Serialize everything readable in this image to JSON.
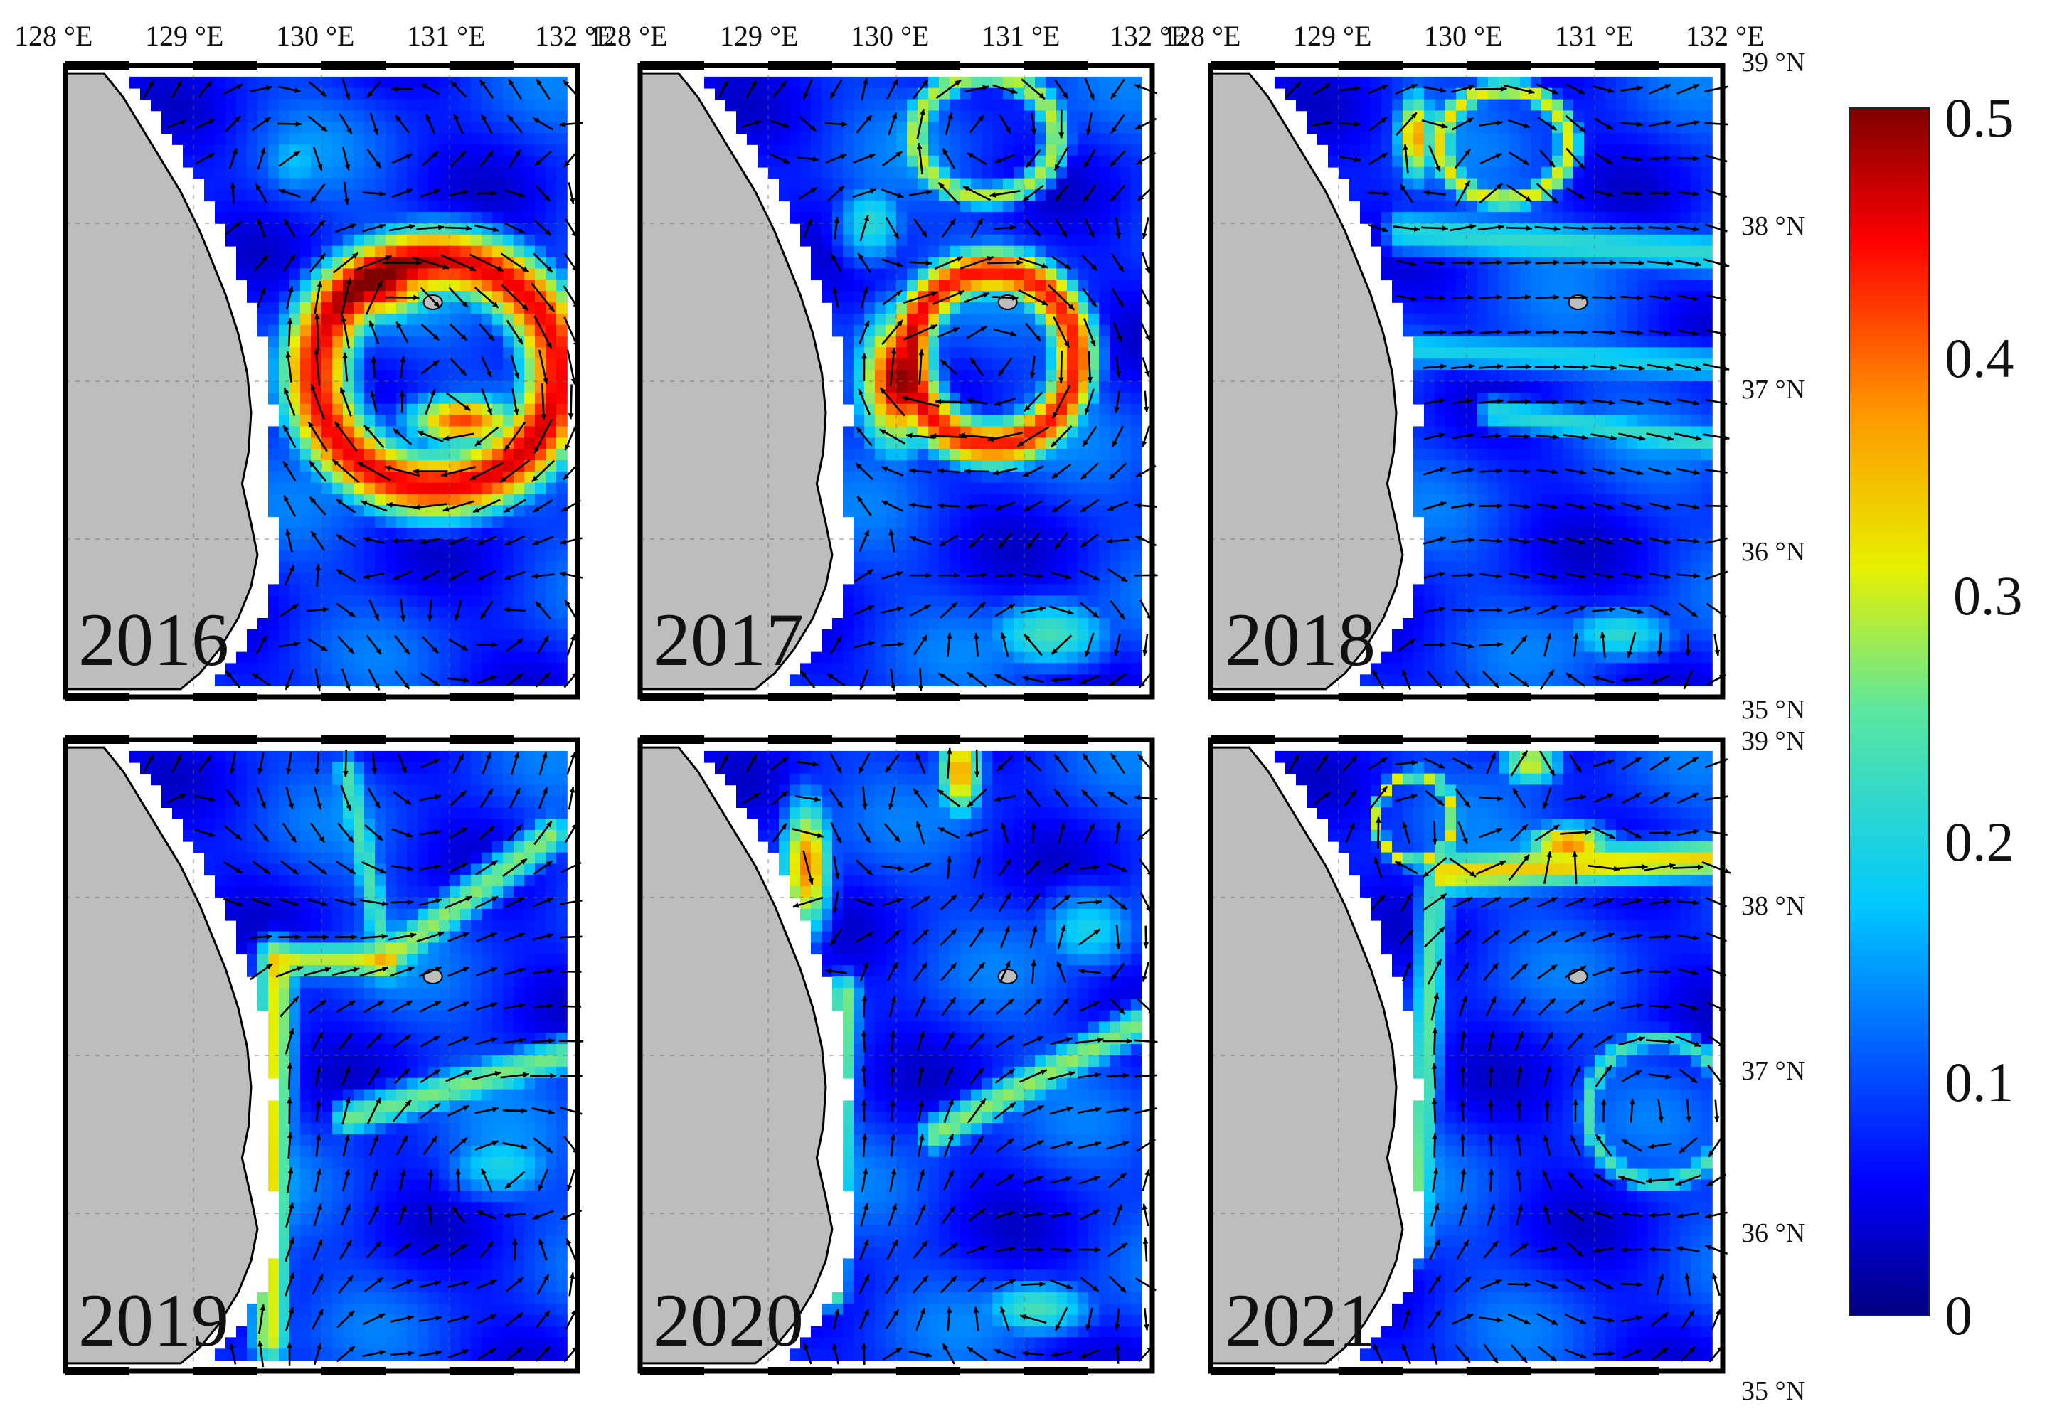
{
  "figure": {
    "longitude_labels": [
      "128 °E",
      "129 °E",
      "130 °E",
      "131 °E",
      "132 °E"
    ],
    "latitude_labels": [
      "39 °N",
      "38 °N",
      "37 °N",
      "36 °N",
      "35 °N"
    ],
    "longitude_range": [
      128,
      132
    ],
    "latitude_range": [
      35,
      39
    ],
    "panels": [
      {
        "year": "2016",
        "features": [
          {
            "kind": "ring",
            "lon": 130.9,
            "lat": 37.05,
            "r_lon": 0.95,
            "r_lat": 0.72,
            "width": 0.32,
            "speed": 0.44
          },
          {
            "kind": "blob",
            "lon": 130.45,
            "lat": 37.6,
            "r_lon": 0.45,
            "r_lat": 0.22,
            "speed": 0.43
          },
          {
            "kind": "blob",
            "lon": 131.1,
            "lat": 36.75,
            "r_lon": 0.45,
            "r_lat": 0.17,
            "speed": 0.4
          },
          {
            "kind": "blob",
            "lon": 129.8,
            "lat": 38.4,
            "r_lon": 0.35,
            "r_lat": 0.3,
            "speed": 0.15
          }
        ]
      },
      {
        "year": "2017",
        "features": [
          {
            "kind": "ring",
            "lon": 130.75,
            "lat": 37.15,
            "r_lon": 0.65,
            "r_lat": 0.55,
            "width": 0.3,
            "speed": 0.42
          },
          {
            "kind": "blob",
            "lon": 130.0,
            "lat": 37.0,
            "r_lon": 0.3,
            "r_lat": 0.45,
            "speed": 0.45
          },
          {
            "kind": "ring",
            "lon": 130.7,
            "lat": 38.55,
            "r_lon": 0.55,
            "r_lat": 0.38,
            "width": 0.22,
            "speed": 0.28
          },
          {
            "kind": "blob",
            "lon": 131.2,
            "lat": 35.4,
            "r_lon": 0.55,
            "r_lat": 0.25,
            "speed": 0.22
          },
          {
            "kind": "blob",
            "lon": 129.8,
            "lat": 38.0,
            "r_lon": 0.3,
            "r_lat": 0.3,
            "speed": 0.2
          }
        ]
      },
      {
        "year": "2018",
        "features": [
          {
            "kind": "ring",
            "lon": 130.3,
            "lat": 38.5,
            "r_lon": 0.5,
            "r_lat": 0.35,
            "width": 0.2,
            "speed": 0.3
          },
          {
            "kind": "blob",
            "lon": 129.6,
            "lat": 38.55,
            "r_lon": 0.15,
            "r_lat": 0.3,
            "speed": 0.36
          },
          {
            "kind": "band",
            "lon1": 129.5,
            "lat1": 37.95,
            "lon2": 132.0,
            "lat2": 37.8,
            "width": 0.16,
            "speed": 0.2
          },
          {
            "kind": "band",
            "lon1": 129.6,
            "lat1": 37.2,
            "lon2": 132.0,
            "lat2": 37.1,
            "width": 0.14,
            "speed": 0.18
          },
          {
            "kind": "band",
            "lon1": 130.2,
            "lat1": 36.8,
            "lon2": 132.0,
            "lat2": 36.6,
            "width": 0.12,
            "speed": 0.2
          },
          {
            "kind": "blob",
            "lon": 131.2,
            "lat": 35.4,
            "r_lon": 0.5,
            "r_lat": 0.2,
            "speed": 0.2
          }
        ]
      },
      {
        "year": "2019",
        "features": [
          {
            "kind": "band",
            "lon1": 129.6,
            "lat1": 35.2,
            "lon2": 129.65,
            "lat2": 37.6,
            "width": 0.16,
            "speed": 0.3
          },
          {
            "kind": "band",
            "lon1": 129.65,
            "lat1": 37.6,
            "lon2": 130.5,
            "lat2": 37.6,
            "width": 0.13,
            "speed": 0.28
          },
          {
            "kind": "band",
            "lon1": 130.5,
            "lat1": 37.6,
            "lon2": 131.8,
            "lat2": 38.4,
            "width": 0.14,
            "speed": 0.26
          },
          {
            "kind": "band",
            "lon1": 130.2,
            "lat1": 38.8,
            "lon2": 130.5,
            "lat2": 37.6,
            "width": 0.12,
            "speed": 0.22
          },
          {
            "kind": "band",
            "lon1": 130.2,
            "lat1": 36.6,
            "lon2": 131.9,
            "lat2": 37.0,
            "width": 0.13,
            "speed": 0.25
          },
          {
            "kind": "blob",
            "lon": 131.4,
            "lat": 36.3,
            "r_lon": 0.5,
            "r_lat": 0.25,
            "speed": 0.18
          }
        ]
      },
      {
        "year": "2020",
        "features": [
          {
            "kind": "blob",
            "lon": 129.3,
            "lat": 38.2,
            "r_lon": 0.2,
            "r_lat": 0.45,
            "speed": 0.38
          },
          {
            "kind": "blob",
            "lon": 130.5,
            "lat": 38.8,
            "r_lon": 0.18,
            "r_lat": 0.3,
            "speed": 0.36
          },
          {
            "kind": "band",
            "lon1": 129.5,
            "lat1": 35.5,
            "lon2": 129.6,
            "lat2": 37.4,
            "width": 0.13,
            "speed": 0.26
          },
          {
            "kind": "band",
            "lon1": 130.3,
            "lat1": 36.5,
            "lon2": 131.9,
            "lat2": 37.2,
            "width": 0.13,
            "speed": 0.26
          },
          {
            "kind": "blob",
            "lon": 131.1,
            "lat": 35.4,
            "r_lon": 0.5,
            "r_lat": 0.2,
            "speed": 0.22
          },
          {
            "kind": "blob",
            "lon": 131.5,
            "lat": 37.8,
            "r_lon": 0.45,
            "r_lat": 0.3,
            "speed": 0.18
          }
        ]
      },
      {
        "year": "2021",
        "features": [
          {
            "kind": "ring",
            "lon": 129.6,
            "lat": 38.5,
            "r_lon": 0.3,
            "r_lat": 0.28,
            "width": 0.16,
            "speed": 0.3
          },
          {
            "kind": "band",
            "lon1": 129.8,
            "lat1": 38.15,
            "lon2": 132.0,
            "lat2": 38.25,
            "width": 0.14,
            "speed": 0.32
          },
          {
            "kind": "blob",
            "lon": 130.8,
            "lat": 38.35,
            "r_lon": 0.35,
            "r_lat": 0.12,
            "speed": 0.38
          },
          {
            "kind": "band",
            "lon1": 129.6,
            "lat1": 35.8,
            "lon2": 129.75,
            "lat2": 38.0,
            "width": 0.13,
            "speed": 0.24
          },
          {
            "kind": "ring",
            "lon": 131.5,
            "lat": 36.65,
            "r_lon": 0.55,
            "r_lat": 0.45,
            "width": 0.16,
            "speed": 0.22
          },
          {
            "kind": "blob",
            "lon": 130.5,
            "lat": 38.85,
            "r_lon": 0.25,
            "r_lat": 0.15,
            "speed": 0.3
          }
        ]
      }
    ],
    "colorbar": {
      "ticks": [
        "0.5",
        "0.4",
        "0.3",
        "0.2",
        "0.1",
        "0"
      ],
      "tick_values": [
        0.5,
        0.4,
        0.3,
        0.2,
        0.1,
        0
      ],
      "min": 0,
      "max": 0.5,
      "colormap": "jet"
    },
    "colors": {
      "land": "#bdbdbd",
      "arrow": "#000000",
      "frame": "#000000",
      "background_speed": "#1f4fa8"
    }
  }
}
